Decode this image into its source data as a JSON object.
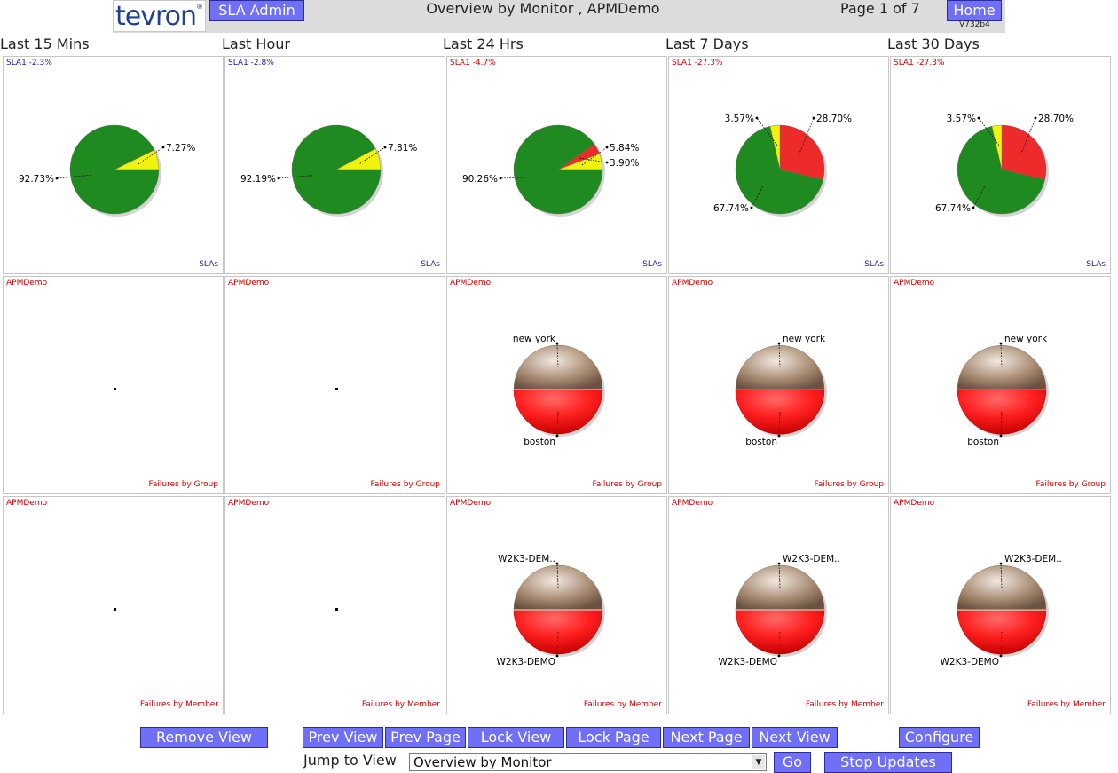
{
  "header": {
    "logo_text": "tevron",
    "logo_mark": "®",
    "sla_admin": "SLA Admin",
    "title": "Overview by Monitor , APMDemo",
    "page_info": "Page 1 of 7",
    "home": "Home",
    "version": "V732b4"
  },
  "columns": [
    "Last 15 Mins",
    "Last Hour",
    "Last 24 Hrs",
    "Last 7 Days",
    "Last 30 Days"
  ],
  "rows": [
    {
      "panels": [
        {
          "title": "SLA1 -2.3%",
          "footer": "SLAs"
        },
        {
          "title": "SLA1 -2.8%",
          "footer": "SLAs"
        },
        {
          "title": "SLA1 -4.7%",
          "footer": "SLAs"
        },
        {
          "title": "SLA1 -27.3%",
          "footer": "SLAs"
        },
        {
          "title": "SLA1 -27.3%",
          "footer": "SLAs"
        }
      ]
    },
    {
      "panels": [
        {
          "title": "APMDemo",
          "footer": "Failures by Group"
        },
        {
          "title": "APMDemo",
          "footer": "Failures by Group"
        },
        {
          "title": "APMDemo",
          "footer": "Failures by Group"
        },
        {
          "title": "APMDemo",
          "footer": "Failures by Group"
        },
        {
          "title": "APMDemo",
          "footer": "Failures by Group"
        }
      ]
    },
    {
      "panels": [
        {
          "title": "APMDemo",
          "footer": "Failures by Member"
        },
        {
          "title": "APMDemo",
          "footer": "Failures by Member"
        },
        {
          "title": "APMDemo",
          "footer": "Failures by Member"
        },
        {
          "title": "APMDemo",
          "footer": "Failures by Member"
        },
        {
          "title": "APMDemo",
          "footer": "Failures by Member"
        }
      ]
    }
  ],
  "colors": {
    "green": "#1f8a1f",
    "yellow": "#f2f20f",
    "red": "#ee2b2b",
    "brown": "#9a7f6a",
    "sla_ok_title": "#1a1aa6",
    "sla_bad_title": "#cc0000",
    "button": "#6f6ff7"
  },
  "chart_data": [
    {
      "type": "pie",
      "title": "SLA1 -2.3%",
      "xlabel": "SLAs",
      "slices": [
        {
          "label": "7.27%",
          "value": 7.27,
          "color": "yellow"
        },
        {
          "label": "92.73%",
          "value": 92.73,
          "color": "green"
        }
      ]
    },
    {
      "type": "pie",
      "title": "SLA1 -2.8%",
      "xlabel": "SLAs",
      "slices": [
        {
          "label": "7.81%",
          "value": 7.81,
          "color": "yellow"
        },
        {
          "label": "92.19%",
          "value": 92.19,
          "color": "green"
        }
      ]
    },
    {
      "type": "pie",
      "title": "SLA1 -4.7%",
      "xlabel": "SLAs",
      "slices": [
        {
          "label": "5.84%",
          "value": 5.84,
          "color": "yellow"
        },
        {
          "label": "3.90%",
          "value": 3.9,
          "color": "red"
        },
        {
          "label": "90.26%",
          "value": 90.26,
          "color": "green"
        }
      ]
    },
    {
      "type": "pie",
      "title": "SLA1 -27.3%",
      "xlabel": "SLAs",
      "slices": [
        {
          "label": "28.70%",
          "value": 28.7,
          "color": "red"
        },
        {
          "label": "67.74%",
          "value": 67.74,
          "color": "green"
        },
        {
          "label": "3.57%",
          "value": 3.57,
          "color": "yellow"
        }
      ]
    },
    {
      "type": "pie",
      "title": "SLA1 -27.3%",
      "xlabel": "SLAs",
      "slices": [
        {
          "label": "28.70%",
          "value": 28.7,
          "color": "red"
        },
        {
          "label": "67.74%",
          "value": 67.74,
          "color": "green"
        },
        {
          "label": "3.57%",
          "value": 3.57,
          "color": "yellow"
        }
      ]
    },
    {
      "type": "pie",
      "title": "APMDemo",
      "xlabel": "Failures by Group",
      "slices": []
    },
    {
      "type": "pie",
      "title": "APMDemo",
      "xlabel": "Failures by Group",
      "slices": []
    },
    {
      "type": "pie",
      "title": "APMDemo",
      "xlabel": "Failures by Group",
      "slices": [
        {
          "label": "new york",
          "value": 50,
          "color": "brown"
        },
        {
          "label": "boston",
          "value": 50,
          "color": "red"
        }
      ]
    },
    {
      "type": "pie",
      "title": "APMDemo",
      "xlabel": "Failures by Group",
      "slices": [
        {
          "label": "new york",
          "value": 48,
          "color": "brown"
        },
        {
          "label": "boston",
          "value": 52,
          "color": "red"
        }
      ]
    },
    {
      "type": "pie",
      "title": "APMDemo",
      "xlabel": "Failures by Group",
      "slices": [
        {
          "label": "new york",
          "value": 48,
          "color": "brown"
        },
        {
          "label": "boston",
          "value": 52,
          "color": "red"
        }
      ]
    },
    {
      "type": "pie",
      "title": "APMDemo",
      "xlabel": "Failures by Member",
      "slices": []
    },
    {
      "type": "pie",
      "title": "APMDemo",
      "xlabel": "Failures by Member",
      "slices": []
    },
    {
      "type": "pie",
      "title": "APMDemo",
      "xlabel": "Failures by Member",
      "slices": [
        {
          "label": "W2K3-DEM..",
          "value": 50,
          "color": "brown"
        },
        {
          "label": "W2K3-DEMO",
          "value": 50,
          "color": "red"
        }
      ]
    },
    {
      "type": "pie",
      "title": "APMDemo",
      "xlabel": "Failures by Member",
      "slices": [
        {
          "label": "W2K3-DEM..",
          "value": 50,
          "color": "brown"
        },
        {
          "label": "W2K3-DEMO",
          "value": 50,
          "color": "red"
        }
      ]
    },
    {
      "type": "pie",
      "title": "APMDemo",
      "xlabel": "Failures by Member",
      "slices": [
        {
          "label": "W2K3-DEM..",
          "value": 49,
          "color": "brown"
        },
        {
          "label": "W2K3-DEMO",
          "value": 51,
          "color": "red"
        }
      ]
    }
  ],
  "footer": {
    "remove_view": "Remove View",
    "prev_view": "Prev View",
    "prev_page": "Prev Page",
    "lock_view": "Lock View",
    "lock_page": "Lock Page",
    "next_page": "Next Page",
    "next_view": "Next View",
    "configure": "Configure",
    "jump_label": "Jump to View",
    "jump_value": "Overview by Monitor",
    "go": "Go",
    "stop_updates": "Stop Updates"
  }
}
